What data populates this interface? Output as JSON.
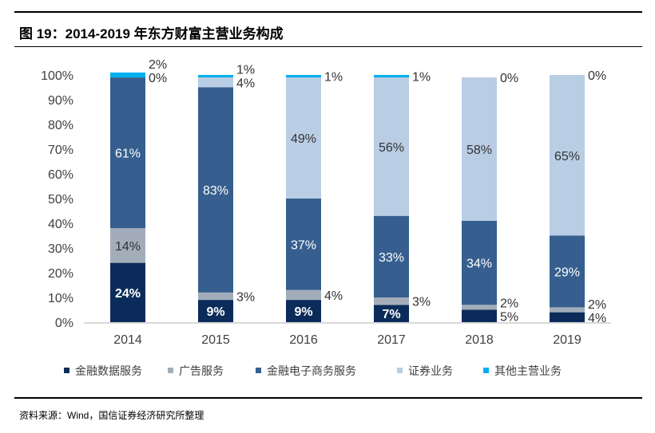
{
  "title": "图 19：2014-2019 年东方财富主营业务构成",
  "source": "资料来源：Wind，国信证券经济研究所整理",
  "chart_data": {
    "type": "bar",
    "stacked": true,
    "percent": true,
    "categories": [
      "2014",
      "2015",
      "2016",
      "2017",
      "2018",
      "2019"
    ],
    "ylim": [
      0,
      100
    ],
    "yticks": [
      "0%",
      "10%",
      "20%",
      "30%",
      "40%",
      "50%",
      "60%",
      "70%",
      "80%",
      "90%",
      "100%"
    ],
    "legend_position": "bottom",
    "grid": false,
    "series": [
      {
        "name": "金融数据服务",
        "color": "#0b2c5a",
        "label_color": "#ffffff",
        "values": [
          24,
          9,
          9,
          7,
          5,
          4
        ]
      },
      {
        "name": "广告服务",
        "color": "#a3adba",
        "label_color": "#333333",
        "values": [
          14,
          3,
          4,
          3,
          2,
          2
        ]
      },
      {
        "name": "金融电子商务服务",
        "color": "#365f8f",
        "label_color": "#ffffff",
        "values": [
          61,
          83,
          37,
          33,
          34,
          29
        ]
      },
      {
        "name": "证券业务",
        "color": "#b9cde5",
        "label_color": "#333333",
        "values": [
          0,
          4,
          49,
          56,
          58,
          65
        ]
      },
      {
        "name": "其他主营业务",
        "color": "#00b0f0",
        "label_color": "#333333",
        "values": [
          2,
          1,
          1,
          1,
          0,
          0
        ]
      }
    ]
  }
}
